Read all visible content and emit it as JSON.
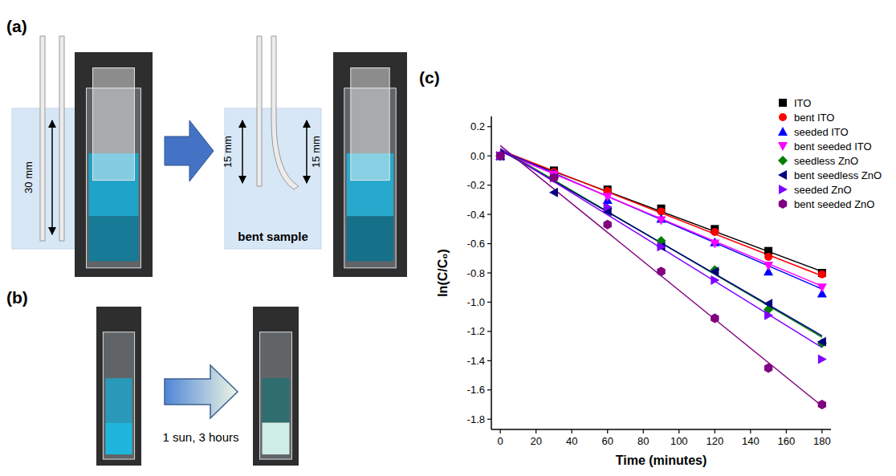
{
  "figure": {
    "panel_a": {
      "letter": "(a)",
      "full_length": "30 mm",
      "bent_lengths": [
        "15 mm",
        "15 mm"
      ],
      "label": "bent sample"
    },
    "panel_b": {
      "letter": "(b)",
      "label": "1 sun, 3 hours"
    },
    "panel_c": {
      "letter": "(c)"
    }
  },
  "chart_data": {
    "type": "scatter",
    "x_label": "Time (minutes)",
    "y_label": "ln(C/C₀)",
    "x": [
      0,
      30,
      60,
      90,
      120,
      150,
      180
    ],
    "fit_x": [
      0,
      180
    ],
    "xlim": [
      -5,
      185
    ],
    "ylim": [
      -1.87,
      0.27
    ],
    "xticks": [
      0,
      20,
      40,
      60,
      80,
      100,
      120,
      140,
      160,
      180
    ],
    "yticks": [
      0.2,
      {
        "value": 0,
        "label": "0.0"
      },
      -0.2,
      -0.4,
      -0.6,
      -0.8,
      {
        "value": -1,
        "label": "-1.0"
      },
      -1.2,
      -1.4,
      -1.6,
      -1.8
    ],
    "grid": false,
    "legend": "top-right",
    "series": [
      {
        "name": "ITO",
        "color": "#000000",
        "marker": "square",
        "values": [
          0,
          -0.1,
          -0.23,
          -0.36,
          -0.5,
          -0.65,
          -0.8
        ],
        "fit": [
          0.03,
          -0.79
        ]
      },
      {
        "name": "bent ITO",
        "color": "#ff0000",
        "marker": "circle",
        "values": [
          0,
          -0.11,
          -0.24,
          -0.38,
          -0.52,
          -0.69,
          -0.81
        ],
        "fit": [
          0.04,
          -0.82
        ]
      },
      {
        "name": "seeded ITO",
        "color": "#0000ff",
        "marker": "triangle-up",
        "values": [
          0,
          -0.12,
          -0.3,
          -0.43,
          -0.59,
          -0.79,
          -0.94
        ],
        "fit": [
          0.04,
          -0.91
        ]
      },
      {
        "name": "bent seeded ITO",
        "color": "#ff00ff",
        "marker": "triangle-down",
        "values": [
          0,
          -0.13,
          -0.28,
          -0.44,
          -0.6,
          -0.75,
          -0.9
        ],
        "fit": [
          0.03,
          -0.89
        ]
      },
      {
        "name": "seedless ZnO",
        "color": "#008000",
        "marker": "diamond",
        "values": [
          0,
          -0.15,
          -0.36,
          -0.58,
          -0.78,
          -1.05,
          -1.28
        ],
        "fit": [
          0.05,
          -1.24
        ]
      },
      {
        "name": "bent seedless ZnO",
        "color": "#000080",
        "marker": "triangle-left",
        "values": [
          0,
          -0.25,
          -0.38,
          -0.62,
          -0.79,
          -1.01,
          -1.27
        ],
        "fit": [
          0.04,
          -1.23
        ]
      },
      {
        "name": "seeded ZnO",
        "color": "#8000ff",
        "marker": "triangle-right",
        "values": [
          0,
          -0.15,
          -0.35,
          -0.62,
          -0.85,
          -1.09,
          -1.39
        ],
        "fit": [
          0.05,
          -1.31
        ]
      },
      {
        "name": "bent seeded ZnO",
        "color": "#800080",
        "marker": "hexagon",
        "values": [
          0,
          -0.15,
          -0.47,
          -0.79,
          -1.11,
          -1.45,
          -1.7
        ],
        "fit": [
          0.07,
          -1.71
        ]
      }
    ]
  }
}
